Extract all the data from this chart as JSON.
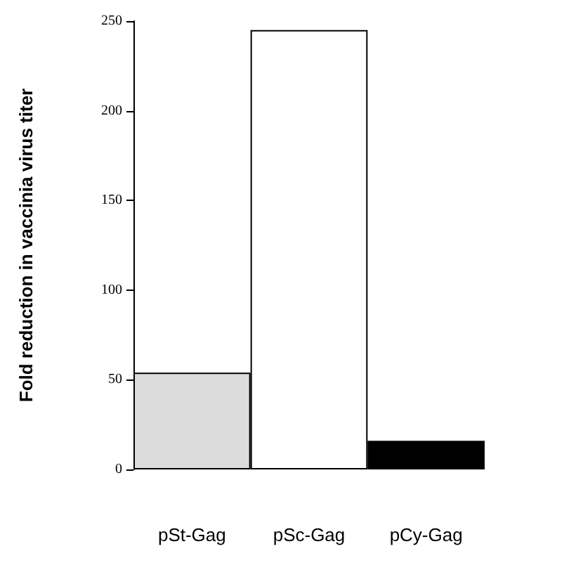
{
  "chart_data": {
    "type": "bar",
    "ylabel": "Fold reduction in vaccinia virus titer",
    "categories": [
      "pSt-Gag",
      "pSc-Gag",
      "pCy-Gag"
    ],
    "values": [
      54,
      245,
      16
    ],
    "colors": [
      "#dcdcdc",
      "#ffffff",
      "#000000"
    ],
    "ylim": [
      0,
      250
    ],
    "yticks": [
      0,
      50,
      100,
      150,
      200,
      250
    ],
    "grid": false
  }
}
